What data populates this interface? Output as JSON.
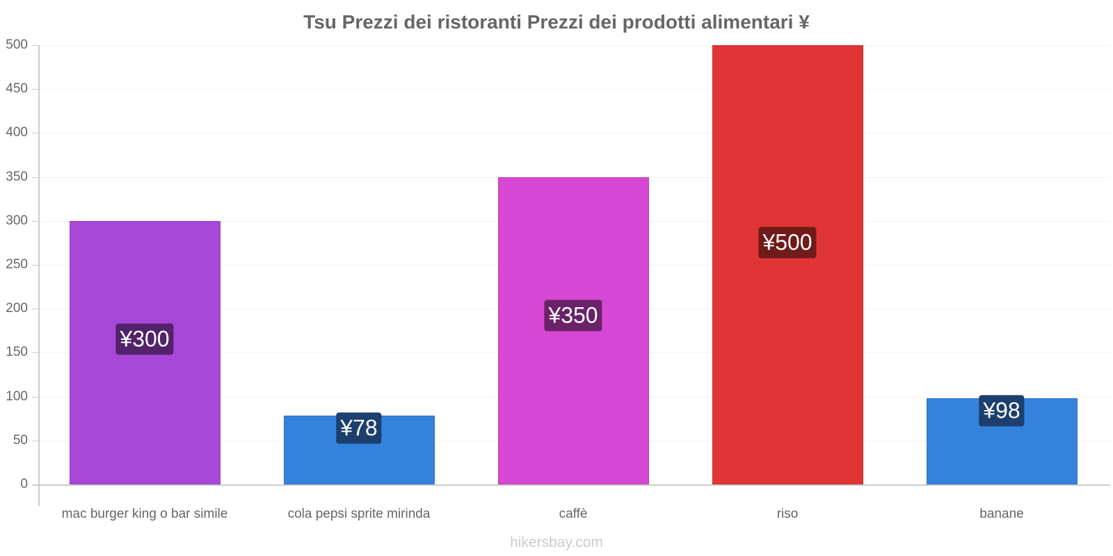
{
  "title": "Tsu Prezzi dei ristoranti Prezzi dei prodotti alimentari ¥",
  "watermark": "hikersbay.com",
  "chart_data": {
    "type": "bar",
    "title": "Tsu Prezzi dei ristoranti Prezzi dei prodotti alimentari ¥",
    "xlabel": "",
    "ylabel": "",
    "ylim": [
      0,
      500
    ],
    "yticks": [
      0,
      50,
      100,
      150,
      200,
      250,
      300,
      350,
      400,
      450,
      500
    ],
    "grid": true,
    "legend": null,
    "categories": [
      "mac burger king o bar simile",
      "cola pepsi sprite mirinda",
      "caffè",
      "riso",
      "banane"
    ],
    "values": [
      300,
      78,
      350,
      500,
      98
    ],
    "labels": [
      "¥300",
      "¥78",
      "¥350",
      "¥500",
      "¥98"
    ],
    "colors": [
      "#a848d8",
      "#3482dc",
      "#d648d3",
      "#e13535",
      "#3482dc"
    ],
    "label_box_colors": [
      "#52226b",
      "#1c3f6e",
      "#6a2269",
      "#701a1a",
      "#1c3f6e"
    ]
  }
}
